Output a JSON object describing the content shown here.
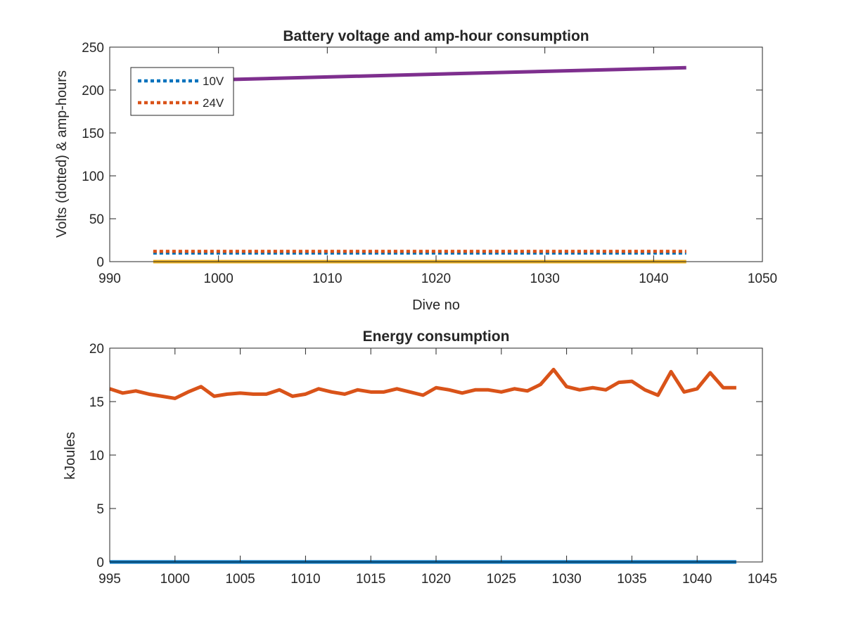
{
  "chart_data": [
    {
      "type": "line",
      "title": "Battery voltage and amp-hour consumption",
      "xlabel": "Dive no",
      "ylabel": "Volts (dotted) & amp-hours",
      "xlim": [
        990,
        1050
      ],
      "ylim": [
        0,
        250
      ],
      "xticks": [
        990,
        1000,
        1010,
        1020,
        1030,
        1040,
        1050
      ],
      "yticks": [
        0,
        50,
        100,
        150,
        200,
        250
      ],
      "grid": false,
      "legend": {
        "placement": "top-left",
        "entries": [
          "10V",
          "24V"
        ]
      },
      "series": [
        {
          "name": "10V",
          "style": "dotted",
          "color": "#0072BD",
          "x": [
            994,
            1043
          ],
          "y": [
            10,
            10
          ]
        },
        {
          "name": "24V",
          "style": "dotted",
          "color": "#D95319",
          "x": [
            994,
            1043
          ],
          "y": [
            12,
            12
          ]
        },
        {
          "style": "solid",
          "color": "#7E2F8E",
          "x": [
            994,
            1043
          ],
          "y": [
            210,
            226
          ]
        },
        {
          "style": "solid",
          "color": "#EDB120",
          "x": [
            994,
            1043
          ],
          "y": [
            0,
            0
          ]
        }
      ]
    },
    {
      "type": "line",
      "title": "Energy consumption",
      "xlabel": "",
      "ylabel": "kJoules",
      "xlim": [
        995,
        1045
      ],
      "ylim": [
        0,
        20
      ],
      "xticks": [
        995,
        1000,
        1005,
        1010,
        1015,
        1020,
        1025,
        1030,
        1035,
        1040,
        1045
      ],
      "yticks": [
        0,
        5,
        10,
        15,
        20
      ],
      "grid": false,
      "series": [
        {
          "style": "solid",
          "color": "#0072BD",
          "x": [
            995,
            1043
          ],
          "y": [
            0,
            0
          ]
        },
        {
          "style": "solid",
          "color": "#D95319",
          "x": [
            995,
            996,
            997,
            998,
            999,
            1000,
            1001,
            1002,
            1003,
            1004,
            1005,
            1006,
            1007,
            1008,
            1009,
            1010,
            1011,
            1012,
            1013,
            1014,
            1015,
            1016,
            1017,
            1018,
            1019,
            1020,
            1021,
            1022,
            1023,
            1024,
            1025,
            1026,
            1027,
            1028,
            1029,
            1030,
            1031,
            1032,
            1033,
            1034,
            1035,
            1036,
            1037,
            1038,
            1039,
            1040,
            1041,
            1042,
            1043
          ],
          "y": [
            16.2,
            15.8,
            16.0,
            15.7,
            15.5,
            15.3,
            15.9,
            16.4,
            15.5,
            15.7,
            15.8,
            15.7,
            15.7,
            16.1,
            15.5,
            15.7,
            16.2,
            15.9,
            15.7,
            16.1,
            15.9,
            15.9,
            16.2,
            15.9,
            15.6,
            16.3,
            16.1,
            15.8,
            16.1,
            16.1,
            15.9,
            16.2,
            16.0,
            16.6,
            18.0,
            16.4,
            16.1,
            16.3,
            16.1,
            16.8,
            16.9,
            16.1,
            15.6,
            17.8,
            15.9,
            16.2,
            17.7,
            16.3,
            16.3
          ]
        }
      ]
    }
  ]
}
